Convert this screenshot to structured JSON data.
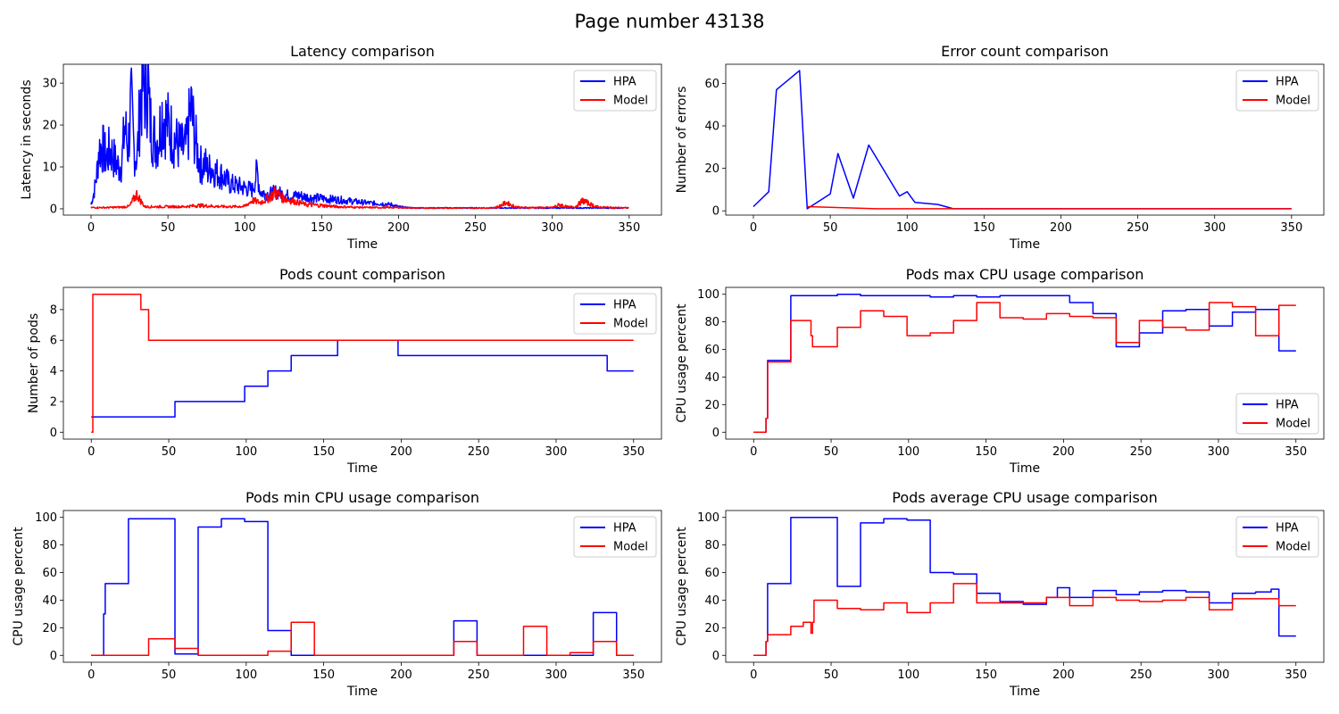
{
  "figure": {
    "title": "Page number 43138"
  },
  "chart_data": [
    {
      "type": "line",
      "title": "Latency comparison",
      "xlabel": "Time",
      "ylabel": "Latency in seconds",
      "xlim": [
        -18,
        371
      ],
      "ylim": [
        -1.5,
        34.5
      ],
      "xticks": [
        0,
        50,
        100,
        150,
        200,
        250,
        300,
        350
      ],
      "yticks": [
        0,
        10,
        20,
        30
      ],
      "legend": "top-right",
      "series": [
        {
          "name": "HPA",
          "color": "#0000ff",
          "noisy": true,
          "jitter": 0.35,
          "x": [
            0,
            2,
            4,
            5,
            7,
            8,
            10,
            12,
            14,
            16,
            18,
            20,
            22,
            24,
            26,
            28,
            30,
            32,
            34,
            36,
            37,
            38,
            40,
            42,
            44,
            46,
            50,
            55,
            60,
            62,
            65,
            68,
            70,
            72,
            74,
            76,
            78,
            80,
            85,
            88,
            90,
            95,
            100,
            105,
            108,
            110,
            115,
            120,
            125,
            130,
            135,
            140,
            145,
            150,
            155,
            160,
            165,
            170,
            175,
            180,
            185,
            190,
            195,
            200,
            205,
            210,
            220,
            230,
            240,
            250,
            260,
            270,
            280,
            290,
            300,
            310,
            320,
            330,
            340,
            350
          ],
          "y": [
            1,
            4,
            9,
            14,
            15,
            14,
            12,
            14,
            13,
            11,
            10,
            11,
            20,
            14,
            25,
            14,
            12,
            26,
            30,
            28,
            32,
            22,
            18,
            16,
            17,
            23,
            20,
            16,
            14,
            15,
            24,
            16,
            12,
            10,
            11,
            9,
            10,
            9,
            8,
            7,
            6,
            5.5,
            5,
            4.5,
            9,
            4,
            3.5,
            4,
            3.5,
            3,
            3.2,
            2.8,
            2.6,
            2.5,
            2.3,
            2.2,
            2.0,
            1.8,
            1.6,
            1.4,
            1.3,
            1.2,
            1.0,
            0.5,
            0.3,
            0.2,
            0.2,
            0.2,
            0.2,
            0.2,
            0.2,
            0.2,
            0.2,
            0.2,
            0.2,
            0.2,
            0.2,
            0.2,
            0.2,
            0.2
          ]
        },
        {
          "name": "Model",
          "color": "#ff0000",
          "noisy": true,
          "jitter": 0.35,
          "x": [
            0,
            10,
            20,
            25,
            28,
            30,
            32,
            35,
            40,
            50,
            60,
            70,
            80,
            90,
            100,
            105,
            110,
            115,
            120,
            125,
            130,
            135,
            140,
            150,
            160,
            170,
            180,
            190,
            200,
            210,
            220,
            230,
            240,
            250,
            260,
            265,
            270,
            275,
            280,
            290,
            300,
            305,
            310,
            315,
            320,
            325,
            330,
            340,
            350
          ],
          "y": [
            0.3,
            0.3,
            0.4,
            0.6,
            2.5,
            3.5,
            2,
            0.5,
            0.5,
            0.5,
            0.5,
            0.8,
            0.6,
            0.5,
            0.6,
            2,
            1.5,
            2.5,
            4,
            2.5,
            2,
            1.5,
            1,
            0.8,
            0.5,
            0.4,
            0.3,
            0.3,
            0.3,
            0.2,
            0.2,
            0.2,
            0.2,
            0.2,
            0.2,
            0.5,
            1.5,
            0.6,
            0.3,
            0.3,
            0.3,
            1,
            0.4,
            0.5,
            2,
            1,
            0.4,
            0.3,
            0.2
          ]
        }
      ]
    },
    {
      "type": "line",
      "title": "Error count comparison",
      "xlabel": "Time",
      "ylabel": "Number of errors",
      "xlim": [
        -18,
        371
      ],
      "ylim": [
        -2,
        69
      ],
      "xticks": [
        0,
        50,
        100,
        150,
        200,
        250,
        300,
        350
      ],
      "yticks": [
        0,
        20,
        40,
        60
      ],
      "legend": "top-right",
      "series": [
        {
          "name": "HPA",
          "color": "#0000ff",
          "x": [
            0,
            10,
            15,
            30,
            35,
            50,
            55,
            65,
            75,
            95,
            100,
            105,
            120,
            130,
            350
          ],
          "y": [
            2,
            9,
            57,
            66,
            1,
            8,
            27,
            6,
            31,
            7,
            9,
            4,
            3,
            1,
            1
          ]
        },
        {
          "name": "Model",
          "color": "#ff0000",
          "x": [
            35,
            80,
            350
          ],
          "y": [
            2,
            1,
            1
          ]
        }
      ]
    },
    {
      "type": "line",
      "title": "Pods count comparison",
      "xlabel": "Time",
      "ylabel": "Number of pods",
      "xlim": [
        -18,
        368
      ],
      "ylim": [
        -0.45,
        9.45
      ],
      "xticks": [
        0,
        50,
        100,
        150,
        200,
        250,
        300,
        350
      ],
      "yticks": [
        0,
        2,
        4,
        6,
        8
      ],
      "legend": "top-right",
      "series": [
        {
          "name": "HPA",
          "color": "#0000ff",
          "step": true,
          "x": [
            0,
            54,
            99,
            114,
            129,
            159,
            198,
            333,
            350
          ],
          "y": [
            1,
            2,
            3,
            4,
            5,
            6,
            5,
            4,
            4
          ]
        },
        {
          "name": "Model",
          "color": "#ff0000",
          "step": true,
          "x": [
            0,
            1,
            32,
            37,
            350
          ],
          "y": [
            0,
            9,
            8,
            6,
            6
          ]
        }
      ]
    },
    {
      "type": "line",
      "title": "Pods max CPU usage comparison",
      "xlabel": "Time",
      "ylabel": "CPU usage percent",
      "xlim": [
        -18,
        368
      ],
      "ylim": [
        -5,
        105
      ],
      "xticks": [
        0,
        50,
        100,
        150,
        200,
        250,
        300,
        350
      ],
      "yticks": [
        0,
        20,
        40,
        60,
        80,
        100
      ],
      "legend": "bottom-right",
      "series": [
        {
          "name": "HPA",
          "color": "#0000ff",
          "step": true,
          "x": [
            0,
            8,
            9,
            24,
            54,
            69,
            99,
            114,
            129,
            144,
            159,
            204,
            219,
            234,
            249,
            264,
            279,
            294,
            309,
            324,
            339,
            350
          ],
          "y": [
            0,
            10,
            52,
            99,
            100,
            99,
            99,
            98,
            99,
            98,
            99,
            94,
            86,
            62,
            72,
            88,
            89,
            77,
            87,
            89,
            59,
            59
          ]
        },
        {
          "name": "Model",
          "color": "#ff0000",
          "step": true,
          "x": [
            0,
            8,
            9,
            24,
            37,
            38,
            54,
            69,
            84,
            99,
            114,
            129,
            144,
            159,
            174,
            189,
            204,
            219,
            234,
            249,
            264,
            279,
            294,
            309,
            324,
            339,
            350
          ],
          "y": [
            0,
            10,
            51,
            81,
            70,
            62,
            76,
            88,
            84,
            70,
            72,
            81,
            94,
            83,
            82,
            86,
            84,
            83,
            65,
            81,
            76,
            74,
            94,
            91,
            70,
            92,
            92
          ]
        }
      ]
    },
    {
      "type": "line",
      "title": "Pods min CPU usage comparison",
      "xlabel": "Time",
      "ylabel": "CPU usage percent",
      "xlim": [
        -18,
        368
      ],
      "ylim": [
        -5,
        105
      ],
      "xticks": [
        0,
        50,
        100,
        150,
        200,
        250,
        300,
        350
      ],
      "yticks": [
        0,
        20,
        40,
        60,
        80,
        100
      ],
      "legend": "top-right",
      "series": [
        {
          "name": "HPA",
          "color": "#0000ff",
          "step": true,
          "x": [
            0,
            8,
            9,
            24,
            54,
            69,
            84,
            99,
            114,
            129,
            234,
            249,
            324,
            339,
            350
          ],
          "y": [
            0,
            30,
            52,
            99,
            1,
            93,
            99,
            97,
            18,
            0,
            25,
            0,
            31,
            0,
            0
          ]
        },
        {
          "name": "Model",
          "color": "#ff0000",
          "step": true,
          "x": [
            0,
            37,
            54,
            69,
            114,
            129,
            144,
            234,
            249,
            279,
            294,
            309,
            324,
            339,
            350
          ],
          "y": [
            0,
            12,
            5,
            0,
            3,
            24,
            0,
            10,
            0,
            21,
            0,
            2,
            10,
            0,
            0
          ]
        }
      ]
    },
    {
      "type": "line",
      "title": "Pods average CPU usage comparison",
      "xlabel": "Time",
      "ylabel": "CPU usage percent",
      "xlim": [
        -18,
        368
      ],
      "ylim": [
        -5,
        105
      ],
      "xticks": [
        0,
        50,
        100,
        150,
        200,
        250,
        300,
        350
      ],
      "yticks": [
        0,
        20,
        40,
        60,
        80,
        100
      ],
      "legend": "top-right",
      "series": [
        {
          "name": "HPA",
          "color": "#0000ff",
          "step": true,
          "x": [
            0,
            8,
            9,
            24,
            54,
            69,
            84,
            99,
            114,
            129,
            144,
            159,
            174,
            189,
            196,
            204,
            219,
            234,
            249,
            264,
            279,
            294,
            309,
            324,
            334,
            339,
            350
          ],
          "y": [
            0,
            10,
            52,
            100,
            50,
            96,
            99,
            98,
            60,
            59,
            45,
            39,
            37,
            42,
            49,
            42,
            47,
            44,
            46,
            47,
            46,
            38,
            45,
            46,
            48,
            14,
            14
          ]
        },
        {
          "name": "Model",
          "color": "#ff0000",
          "step": true,
          "x": [
            0,
            8,
            9,
            24,
            32,
            37,
            38,
            39,
            54,
            69,
            84,
            99,
            114,
            129,
            144,
            159,
            174,
            189,
            204,
            219,
            234,
            249,
            264,
            279,
            294,
            309,
            324,
            339,
            350
          ],
          "y": [
            0,
            10,
            15,
            21,
            24,
            16,
            24,
            40,
            34,
            33,
            38,
            31,
            38,
            52,
            38,
            38,
            38,
            42,
            36,
            42,
            40,
            39,
            40,
            42,
            33,
            41,
            41,
            36,
            36
          ]
        }
      ]
    }
  ]
}
